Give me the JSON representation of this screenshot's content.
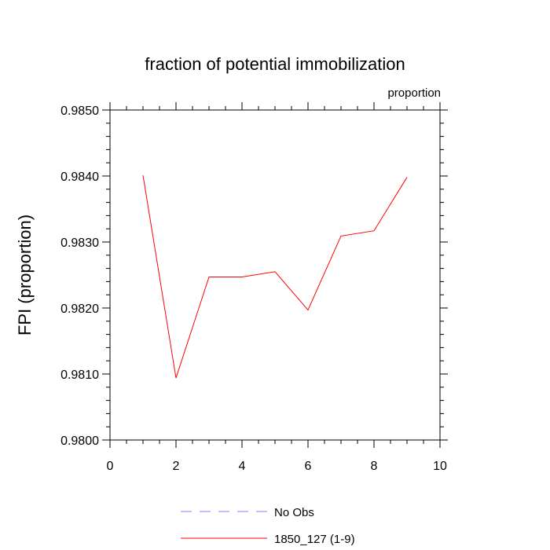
{
  "chart_data": {
    "type": "line",
    "title": "fraction of potential immobilization",
    "units_label": "proportion",
    "ylabel": "FPI  (proportion)",
    "xlabel": "",
    "xlim": [
      0,
      10
    ],
    "ylim": [
      0.98,
      0.985
    ],
    "x_ticks": [
      0,
      2,
      4,
      6,
      8,
      10
    ],
    "x_tick_labels": [
      "0",
      "2",
      "4",
      "6",
      "8",
      "10"
    ],
    "y_ticks": [
      0.98,
      0.981,
      0.982,
      0.983,
      0.984,
      0.985
    ],
    "y_tick_labels": [
      "0.9800",
      "0.9810",
      "0.9820",
      "0.9830",
      "0.9840",
      "0.9850"
    ],
    "grid": false,
    "legend_position": "bottom-center",
    "series": [
      {
        "name": "No Obs",
        "color": "#8080ff",
        "dashed": true,
        "x": [],
        "values": []
      },
      {
        "name": "1850_127 (1-9)",
        "color": "#ff0000",
        "dashed": false,
        "x": [
          1,
          2,
          3,
          4,
          5,
          6,
          7,
          8,
          9
        ],
        "values": [
          0.98401,
          0.98094,
          0.98247,
          0.98247,
          0.98255,
          0.98197,
          0.98309,
          0.98317,
          0.98398
        ]
      }
    ]
  }
}
